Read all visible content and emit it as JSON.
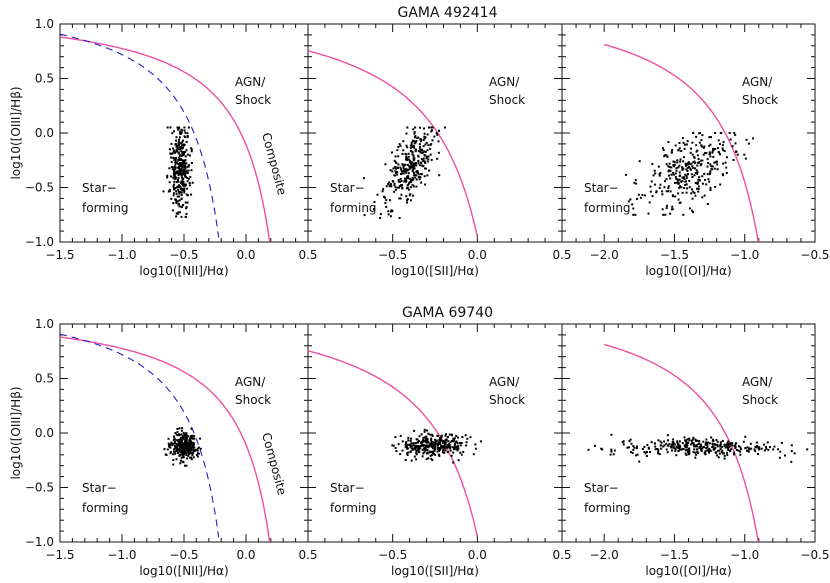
{
  "figure": {
    "width": 830,
    "height": 583
  },
  "colors": {
    "axes": "#111111",
    "points": "#000000",
    "kewley": "#ee4fa0",
    "kauffmann": "#2020c8"
  },
  "chart_data": [
    {
      "type": "scatter",
      "title": "GAMA 492414",
      "panel": "NII",
      "xlabel": "log10([NII]/Hα)",
      "ylabel": "log10([OIII]/Hβ)",
      "xlim": [
        -1.5,
        0.5
      ],
      "ylim": [
        -1.0,
        1.0
      ],
      "xticks": [
        -1.5,
        -1.0,
        -0.5,
        0.0,
        0.5
      ],
      "yticks": [
        -1.0,
        -0.5,
        0.0,
        0.5,
        1.0
      ],
      "labels": [
        "AGN/",
        "Shock",
        "Star−",
        "forming",
        "Composite"
      ],
      "cluster": {
        "x_center": -0.53,
        "y_center": -0.33,
        "x_spread": 0.04,
        "y_spread": 0.2,
        "y_range": [
          -0.77,
          0.05
        ]
      }
    },
    {
      "type": "scatter",
      "title": "",
      "panel": "SII",
      "xlabel": "log10([SII]/Hα)",
      "ylabel": "",
      "xlim": [
        -1.0,
        0.5
      ],
      "ylim": [
        -1.0,
        1.0
      ],
      "xticks": [
        -0.5,
        0.0,
        0.5
      ],
      "labels": [
        "AGN/",
        "Shock",
        "Star−",
        "forming"
      ],
      "cluster": {
        "x_center": -0.4,
        "y_center": -0.3,
        "x_spread": 0.06,
        "y_spread": 0.2,
        "y_range": [
          -0.78,
          0.05
        ]
      }
    },
    {
      "type": "scatter",
      "title": "",
      "panel": "OI",
      "xlabel": "log10([OI]/Hα)",
      "ylabel": "",
      "xlim": [
        -2.3,
        -0.5
      ],
      "ylim": [
        -1.0,
        1.0
      ],
      "xticks": [
        -2.0,
        -1.5,
        -1.0,
        -0.5
      ],
      "labels": [
        "AGN/",
        "Shock",
        "Star−",
        "forming"
      ],
      "cluster": {
        "x_center": -1.4,
        "y_center": -0.35,
        "x_spread": 0.15,
        "y_spread": 0.18,
        "y_range": [
          -0.75,
          0.0
        ]
      }
    },
    {
      "type": "scatter",
      "title": "GAMA 69740",
      "panel": "NII",
      "xlabel": "log10([NII]/Hα)",
      "ylabel": "log10([OIII]/Hβ)",
      "xlim": [
        -1.5,
        0.5
      ],
      "ylim": [
        -1.0,
        1.0
      ],
      "xticks": [
        -1.5,
        -1.0,
        -0.5,
        0.0,
        0.5
      ],
      "yticks": [
        -1.0,
        -0.5,
        0.0,
        0.5,
        1.0
      ],
      "labels": [
        "AGN/",
        "Shock",
        "Star−",
        "forming",
        "Composite"
      ],
      "cluster": {
        "x_center": -0.5,
        "y_center": -0.12,
        "x_spread": 0.05,
        "y_spread": 0.06,
        "y_range": [
          -0.3,
          0.12
        ]
      }
    },
    {
      "type": "scatter",
      "title": "",
      "panel": "SII",
      "xlabel": "log10([SII]/Hα)",
      "ylabel": "",
      "xlim": [
        -1.0,
        0.5
      ],
      "ylim": [
        -1.0,
        1.0
      ],
      "xticks": [
        -0.5,
        0.0,
        0.5
      ],
      "labels": [
        "AGN/",
        "Shock",
        "Star−",
        "forming"
      ],
      "cluster": {
        "x_center": -0.27,
        "y_center": -0.12,
        "x_spread": 0.1,
        "y_spread": 0.05,
        "y_range": [
          -0.32,
          0.12
        ]
      }
    },
    {
      "type": "scatter",
      "title": "",
      "panel": "OI",
      "xlabel": "log10([OI]/Hα)",
      "ylabel": "",
      "xlim": [
        -2.3,
        -0.5
      ],
      "ylim": [
        -1.0,
        1.0
      ],
      "xticks": [
        -2.0,
        -1.5,
        -1.0,
        -0.5
      ],
      "labels": [
        "AGN/",
        "Shock",
        "Star−",
        "forming"
      ],
      "cluster": {
        "x_center": -1.3,
        "y_center": -0.13,
        "x_spread": 0.3,
        "y_spread": 0.04,
        "y_range": [
          -0.3,
          0.1
        ]
      }
    }
  ]
}
